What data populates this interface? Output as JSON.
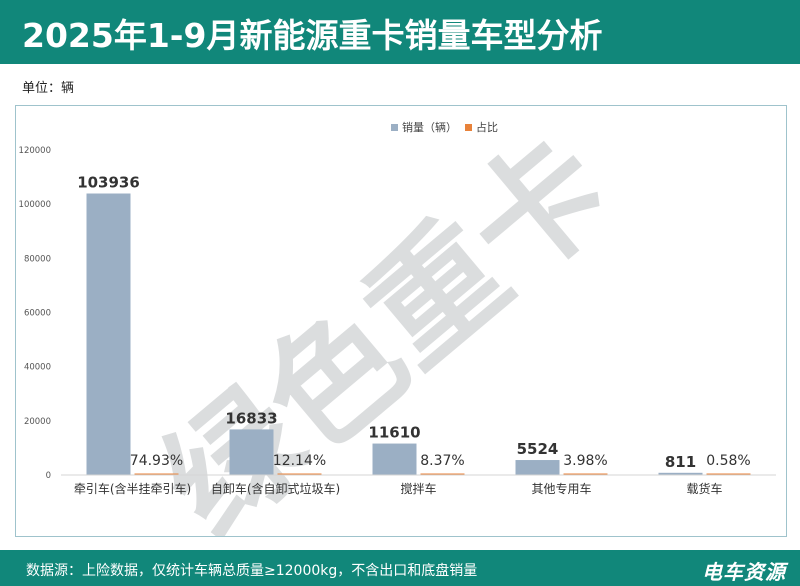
{
  "title": "2025年1-9月新能源重卡销量车型分析",
  "unit_label": "单位：辆",
  "watermark": "绿色重卡",
  "source": "数据源：上险数据，仅统计车辆总质量≥12000kg，不含出口和底盘销量",
  "logo": "电车资源",
  "colors": {
    "header": "#11877a",
    "bar_sales": "#9bafc4",
    "bar_share": "#e8823a"
  },
  "chart_data": {
    "type": "bar",
    "categories": [
      "牵引车(含半挂牵引车)",
      "自卸车(含自卸式垃圾车)",
      "搅拌车",
      "其他专用车",
      "载货车"
    ],
    "series": [
      {
        "name": "销量（辆）",
        "values": [
          103936,
          16833,
          11610,
          5524,
          811
        ],
        "labels": [
          "103936",
          "16833",
          "11610",
          "5524",
          "811"
        ]
      },
      {
        "name": "占比",
        "values": [
          74.93,
          12.14,
          8.37,
          3.98,
          0.58
        ],
        "labels": [
          "74.93%",
          "12.14%",
          "8.37%",
          "3.98%",
          "0.58%"
        ]
      }
    ],
    "yticks": [
      "0",
      "20000",
      "40000",
      "60000",
      "80000",
      "100000",
      "120000"
    ],
    "ylim": [
      0,
      120000
    ],
    "legend": "top-right",
    "grid": false
  }
}
